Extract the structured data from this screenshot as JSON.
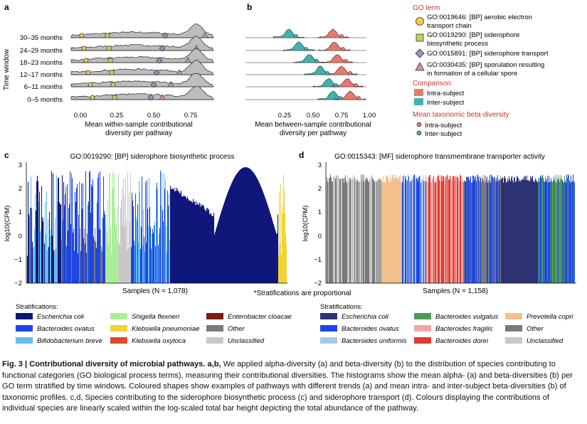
{
  "panels": {
    "a": {
      "letter": "a",
      "ylabel": "Time window",
      "xlabel_l1": "Mean within-sample contributional",
      "xlabel_l2": "diversity per pathway",
      "ticks": [
        "0.00",
        "0.25",
        "0.50",
        "0.75"
      ],
      "rows": [
        "30–35 months",
        "24–29 months",
        "18–23 months",
        "12–17 months",
        "6–11 months",
        "0–5 months"
      ]
    },
    "b": {
      "letter": "b",
      "xlabel_l1": "Mean between-sample contributional",
      "xlabel_l2": "diversity per pathway",
      "ticks": [
        "0.25",
        "0.50",
        "0.75",
        "1.00"
      ]
    },
    "c": {
      "letter": "c",
      "title": "GO:0019290: [BP] siderophore biosynthetic process",
      "xlabel": "Samples (N = 1,078)",
      "note": "*Stratifications are proportional"
    },
    "d": {
      "letter": "d",
      "title": "GO:0015343: [MF] siderophore transmembrane transporter activity",
      "xlabel": "Samples (N = 1,158)"
    }
  },
  "ylabel_cd": "log10(CPM)",
  "yticks_cd": [
    "3",
    "2",
    "1",
    "0",
    "−1",
    "−2"
  ],
  "legend_ab": {
    "go_title": "GO term",
    "go_terms": [
      {
        "shape": "circle",
        "color": "#f2c94c",
        "l1": "GO:0019646: [BP] aerobic electron",
        "l2": "transport chain"
      },
      {
        "shape": "square",
        "color": "#b7d45c",
        "l1": "GO:0019290: [BP] siderophore",
        "l2": "biosynthetic process"
      },
      {
        "shape": "diamond",
        "color": "#8e97c8",
        "l1": "GO:0015891: [BP] siderophore transport",
        "l2": ""
      },
      {
        "shape": "triangle",
        "color": "#d88cc0",
        "l1": "GO:0030435: [BP] sporulation resulting",
        "l2": "in formation of a cellular spore"
      }
    ],
    "comparison_title": "Comparison",
    "comparison": [
      {
        "label": "Intra-subject",
        "color": "#e7796a"
      },
      {
        "label": "Inter-subject",
        "color": "#3fb3b0"
      }
    ],
    "beta_title": "Mean taxonomic beta-diversity",
    "beta": [
      {
        "label": "Intra-subject",
        "color": "#e7796a"
      },
      {
        "label": "Inter-subject",
        "color": "#3fb3b0"
      }
    ]
  },
  "legend_c": {
    "title": "Stratifications:",
    "items": [
      {
        "label": "Escherichia coli",
        "color": "#10177a"
      },
      {
        "label": "Bacteroides ovatus",
        "color": "#1e46e0"
      },
      {
        "label": "Bifidobacterium breve",
        "color": "#62bff0"
      },
      {
        "label": "Shigella flexneri",
        "color": "#a9ef98"
      },
      {
        "label": "Klebsiella pneumoniae",
        "color": "#f3d333"
      },
      {
        "label": "Klebsiella oxytoca",
        "color": "#e2482a"
      },
      {
        "label": "Enterobacter cloacae",
        "color": "#7a1e14"
      },
      {
        "label": "Other",
        "color": "#7a7a7a"
      },
      {
        "label": "Unclassified",
        "color": "#c8c8c8"
      }
    ]
  },
  "legend_d": {
    "title": "Stratifications:",
    "items": [
      {
        "label": "Escherichia coli",
        "color": "#2d3272"
      },
      {
        "label": "Bacteroides ovatus",
        "color": "#1e46e0"
      },
      {
        "label": "Bacteroides uniformis",
        "color": "#a9c8e8"
      },
      {
        "label": "Bacteroides vulgatus",
        "color": "#4f9a52"
      },
      {
        "label": "Bacteroides fragilis",
        "color": "#f0a8a0"
      },
      {
        "label": "Bacteroides dorei",
        "color": "#e03a32"
      },
      {
        "label": "Prevotella copri",
        "color": "#f2c08c"
      },
      {
        "label": "Other",
        "color": "#7a7a7a"
      },
      {
        "label": "Unclassified",
        "color": "#c8c8c8"
      }
    ]
  },
  "caption": {
    "lead": "Fig. 3 | Contributional diversity of microbial pathways. a,b,",
    "body": " We applied alpha-diversity (a) and beta-diversity (b) to the distribution of species contributing to functional categories (GO biological process terms), measuring their contributional diversities. The histograms show the mean alpha- (a) and beta-diversities (b) per GO term stratified by time windows. Coloured shapes show examples of pathways with different trends (a) and mean intra- and inter-subject beta-diversities (b) of taxonomic profiles. c,d, Species contributing to the siderophore biosynthetic process (c) and siderophore transport (d). Colours displaying the contributions of individual species are linearly scaled within the log-scaled total bar height depicting the total abundance of the pathway."
  }
}
